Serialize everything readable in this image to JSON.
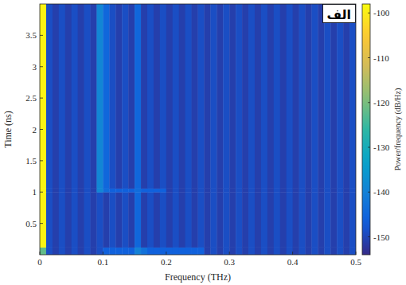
{
  "chart_data": {
    "type": "heatmap",
    "xlabel": "Frequency (THz)",
    "ylabel": "Time (ns)",
    "colorbar_label": "Power/frequency (dB/Hz)",
    "annotation": "الف",
    "xlim": [
      0,
      0.5
    ],
    "ylim": [
      0,
      4
    ],
    "xticks": [
      0,
      0.1,
      0.2,
      0.3,
      0.4,
      0.5
    ],
    "yticks": [
      0.5,
      1,
      1.5,
      2,
      2.5,
      3,
      3.5
    ],
    "x_edges": [
      0,
      0.01,
      0.02,
      0.03,
      0.04,
      0.05,
      0.06,
      0.07,
      0.08,
      0.09,
      0.1,
      0.11,
      0.12,
      0.13,
      0.14,
      0.15,
      0.16,
      0.17,
      0.18,
      0.19,
      0.2,
      0.21,
      0.22,
      0.23,
      0.24,
      0.25,
      0.26,
      0.27,
      0.28,
      0.29,
      0.3,
      0.31,
      0.32,
      0.33,
      0.34,
      0.35,
      0.36,
      0.37,
      0.38,
      0.39,
      0.4,
      0.41,
      0.42,
      0.43,
      0.44,
      0.45,
      0.46,
      0.47,
      0.48,
      0.49,
      0.5
    ],
    "y_edges": [
      0,
      0.12,
      1.0,
      1.06,
      4
    ],
    "cells": [
      [
        -122,
        -149,
        -151,
        -149,
        -151,
        -149,
        -151,
        -149,
        -151,
        -149,
        -146,
        -146,
        -146,
        -146,
        -146,
        -140,
        -143,
        -146,
        -146,
        -146,
        -146,
        -146,
        -146,
        -146,
        -146,
        -146,
        -151,
        -149,
        -151,
        -149,
        -151,
        -149,
        -151,
        -149,
        -151,
        -149,
        -151,
        -149,
        -151,
        -149,
        -151,
        -149,
        -151,
        -149,
        -151,
        -149,
        -151,
        -149,
        -151,
        -149
      ],
      [
        -99,
        -149,
        -151,
        -149,
        -151,
        -149,
        -151,
        -149,
        -151,
        -149,
        -151,
        -149,
        -151,
        -149,
        -151,
        -145,
        -151,
        -149,
        -151,
        -149,
        -151,
        -149,
        -151,
        -149,
        -151,
        -149,
        -151,
        -149,
        -151,
        -149,
        -151,
        -149,
        -151,
        -149,
        -151,
        -149,
        -151,
        -149,
        -151,
        -149,
        -151,
        -149,
        -151,
        -149,
        -151,
        -149,
        -151,
        -149,
        -151,
        -149
      ],
      [
        -99,
        -149,
        -151,
        -149,
        -151,
        -149,
        -151,
        -149,
        -151,
        -139,
        -144,
        -146,
        -146,
        -146,
        -146,
        -144,
        -146,
        -146,
        -146,
        -146,
        -151,
        -149,
        -151,
        -149,
        -151,
        -149,
        -151,
        -149,
        -151,
        -149,
        -151,
        -149,
        -151,
        -149,
        -151,
        -149,
        -151,
        -149,
        -151,
        -149,
        -151,
        -149,
        -151,
        -149,
        -151,
        -149,
        -151,
        -149,
        -151,
        -149
      ],
      [
        -99,
        -149,
        -151,
        -149,
        -151,
        -149,
        -151,
        -149,
        -151,
        -139,
        -145,
        -149,
        -151,
        -149,
        -151,
        -145,
        -151,
        -149,
        -151,
        -149,
        -151,
        -149,
        -151,
        -149,
        -151,
        -149,
        -151,
        -149,
        -151,
        -149,
        -151,
        -149,
        -151,
        -149,
        -151,
        -149,
        -151,
        -149,
        -151,
        -149,
        -151,
        -149,
        -151,
        -149,
        -151,
        -149,
        -151,
        -149,
        -151,
        -149
      ]
    ],
    "color_range": [
      -154,
      -98
    ],
    "color_ticks": [
      -100,
      -110,
      -120,
      -130,
      -140,
      -150
    ]
  }
}
